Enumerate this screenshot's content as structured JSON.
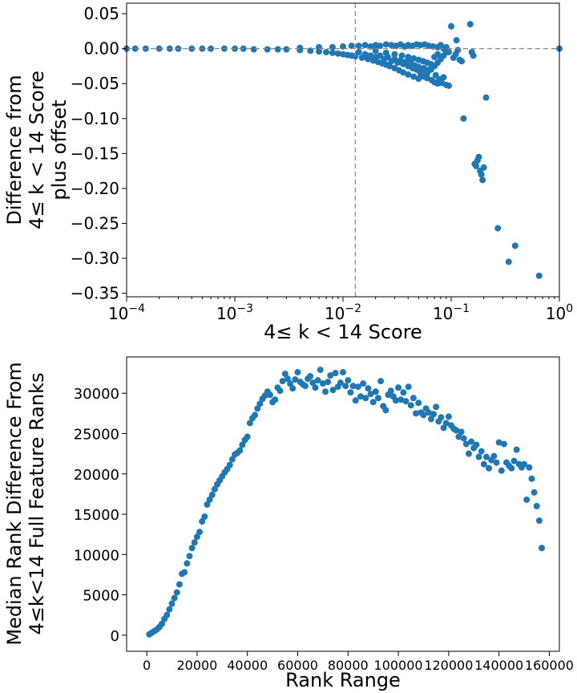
{
  "chart_data": [
    {
      "type": "scatter",
      "xscale": "log",
      "title": "",
      "xlabel": "4≤  k < 14 Score",
      "ylabel_lines": [
        "Difference from",
        "4≤  k < 14 Score",
        "plus offset"
      ],
      "xlim": [
        0.0001,
        1
      ],
      "ylim": [
        -0.355,
        0.065
      ],
      "x_ticks": [
        {
          "value": 0.0001,
          "base": "10",
          "exp": "−4"
        },
        {
          "value": 0.001,
          "base": "10",
          "exp": "−3"
        },
        {
          "value": 0.01,
          "base": "10",
          "exp": "−2"
        },
        {
          "value": 0.1,
          "base": "10",
          "exp": "−1"
        },
        {
          "value": 1,
          "base": "10",
          "exp": "0"
        }
      ],
      "y_ticks": [
        {
          "value": 0.05,
          "label": "0.05"
        },
        {
          "value": 0.0,
          "label": "0.00"
        },
        {
          "value": -0.05,
          "label": "−0.05"
        },
        {
          "value": -0.1,
          "label": "−0.10"
        },
        {
          "value": -0.15,
          "label": "−0.15"
        },
        {
          "value": -0.2,
          "label": "−0.20"
        },
        {
          "value": -0.25,
          "label": "−0.25"
        },
        {
          "value": -0.3,
          "label": "−0.30"
        },
        {
          "value": -0.35,
          "label": "−0.35"
        }
      ],
      "reference_lines": {
        "vertical_x": 0.013,
        "horizontal_y": 0.0
      },
      "marker_color": "#1f77b4",
      "points": [
        [
          0.0001,
          0.0
        ],
        [
          0.00012,
          0.0
        ],
        [
          0.00015,
          0.0
        ],
        [
          0.0002,
          0.0
        ],
        [
          0.00025,
          0.0
        ],
        [
          0.0003,
          0.0
        ],
        [
          0.0004,
          0.0
        ],
        [
          0.0005,
          0.0
        ],
        [
          0.0006,
          0.0
        ],
        [
          0.0008,
          0.0
        ],
        [
          0.001,
          0.0
        ],
        [
          0.0012,
          0.0
        ],
        [
          0.0015,
          -0.001
        ],
        [
          0.002,
          -0.001
        ],
        [
          0.0025,
          -0.001
        ],
        [
          0.003,
          -0.001
        ],
        [
          0.004,
          -0.002
        ],
        [
          0.005,
          -0.003
        ],
        [
          0.006,
          -0.004
        ],
        [
          0.007,
          -0.005
        ],
        [
          0.008,
          -0.006
        ],
        [
          0.009,
          -0.007
        ],
        [
          0.01,
          -0.008
        ],
        [
          0.011,
          -0.009
        ],
        [
          0.012,
          -0.01
        ],
        [
          0.013,
          -0.011
        ],
        [
          0.015,
          -0.013
        ],
        [
          0.017,
          -0.015
        ],
        [
          0.019,
          -0.017
        ],
        [
          0.021,
          -0.019
        ],
        [
          0.023,
          -0.021
        ],
        [
          0.025,
          -0.023
        ],
        [
          0.027,
          -0.025
        ],
        [
          0.03,
          -0.028
        ],
        [
          0.033,
          -0.031
        ],
        [
          0.036,
          -0.034
        ],
        [
          0.04,
          -0.037
        ],
        [
          0.045,
          -0.04
        ],
        [
          0.05,
          -0.043
        ],
        [
          0.004,
          0.001
        ],
        [
          0.006,
          0.002
        ],
        [
          0.008,
          0.002
        ],
        [
          0.01,
          0.003
        ],
        [
          0.012,
          0.004
        ],
        [
          0.014,
          0.004
        ],
        [
          0.016,
          0.005
        ],
        [
          0.018,
          0.003
        ],
        [
          0.02,
          0.005
        ],
        [
          0.022,
          0.004
        ],
        [
          0.025,
          0.006
        ],
        [
          0.028,
          0.005
        ],
        [
          0.031,
          0.004
        ],
        [
          0.034,
          0.006
        ],
        [
          0.037,
          0.003
        ],
        [
          0.04,
          0.005
        ],
        [
          0.044,
          0.004
        ],
        [
          0.048,
          0.006
        ],
        [
          0.052,
          0.005
        ],
        [
          0.057,
          0.006
        ],
        [
          0.062,
          0.004
        ],
        [
          0.068,
          0.003
        ],
        [
          0.075,
          0.002
        ],
        [
          0.014,
          -0.005
        ],
        [
          0.016,
          -0.008
        ],
        [
          0.018,
          -0.01
        ],
        [
          0.02,
          -0.012
        ],
        [
          0.022,
          -0.01
        ],
        [
          0.024,
          -0.015
        ],
        [
          0.026,
          -0.012
        ],
        [
          0.028,
          -0.018
        ],
        [
          0.03,
          -0.015
        ],
        [
          0.032,
          -0.02
        ],
        [
          0.034,
          -0.017
        ],
        [
          0.036,
          -0.022
        ],
        [
          0.038,
          -0.019
        ],
        [
          0.04,
          -0.025
        ],
        [
          0.042,
          -0.02
        ],
        [
          0.044,
          -0.028
        ],
        [
          0.046,
          -0.024
        ],
        [
          0.048,
          -0.03
        ],
        [
          0.05,
          -0.026
        ],
        [
          0.053,
          -0.032
        ],
        [
          0.056,
          -0.028
        ],
        [
          0.06,
          -0.035
        ],
        [
          0.065,
          -0.03
        ],
        [
          0.07,
          -0.025
        ],
        [
          0.075,
          -0.02
        ],
        [
          0.08,
          -0.015
        ],
        [
          0.085,
          -0.01
        ],
        [
          0.09,
          -0.005
        ],
        [
          0.02,
          -0.003
        ],
        [
          0.025,
          -0.006
        ],
        [
          0.03,
          -0.008
        ],
        [
          0.035,
          -0.01
        ],
        [
          0.04,
          -0.012
        ],
        [
          0.045,
          -0.014
        ],
        [
          0.05,
          -0.016
        ],
        [
          0.055,
          -0.018
        ],
        [
          0.06,
          -0.02
        ],
        [
          0.065,
          -0.022
        ],
        [
          0.07,
          -0.012
        ],
        [
          0.075,
          -0.008
        ],
        [
          0.052,
          -0.035
        ],
        [
          0.056,
          -0.04
        ],
        [
          0.06,
          -0.042
        ],
        [
          0.063,
          -0.03
        ],
        [
          0.066,
          -0.045
        ],
        [
          0.07,
          -0.048
        ],
        [
          0.072,
          -0.038
        ],
        [
          0.075,
          -0.05
        ],
        [
          0.078,
          -0.044
        ],
        [
          0.082,
          -0.049
        ],
        [
          0.085,
          -0.041
        ],
        [
          0.09,
          -0.052
        ],
        [
          0.095,
          -0.053
        ],
        [
          0.08,
          0.005
        ],
        [
          0.085,
          0.0
        ],
        [
          0.09,
          0.002
        ],
        [
          0.095,
          -0.005
        ],
        [
          0.1,
          0.032
        ],
        [
          0.105,
          -0.013
        ],
        [
          0.11,
          -0.008
        ],
        [
          0.112,
          0.012
        ],
        [
          0.115,
          -0.002
        ],
        [
          0.12,
          -0.016
        ],
        [
          0.125,
          -0.018
        ],
        [
          0.13,
          -0.1
        ],
        [
          0.15,
          0.035
        ],
        [
          0.155,
          -0.005
        ],
        [
          0.16,
          -0.01
        ],
        [
          0.165,
          -0.165
        ],
        [
          0.17,
          -0.168
        ],
        [
          0.175,
          -0.16
        ],
        [
          0.18,
          -0.155
        ],
        [
          0.185,
          -0.175
        ],
        [
          0.19,
          -0.18
        ],
        [
          0.195,
          -0.188
        ],
        [
          0.2,
          -0.17
        ],
        [
          0.21,
          -0.07
        ],
        [
          0.27,
          -0.257
        ],
        [
          0.34,
          -0.305
        ],
        [
          0.39,
          -0.282
        ],
        [
          0.65,
          -0.325
        ],
        [
          1.0,
          0.0
        ]
      ]
    },
    {
      "type": "scatter",
      "title": "",
      "xlabel": "Rank Range",
      "ylabel_lines": [
        "Median Rank Difference From",
        "4≤k<14 Full Feature Ranks"
      ],
      "xlim": [
        -8000,
        164000
      ],
      "ylim": [
        -2000,
        34500
      ],
      "x_ticks": [
        {
          "value": 0,
          "label": "0"
        },
        {
          "value": 20000,
          "label": "20000"
        },
        {
          "value": 40000,
          "label": "40000"
        },
        {
          "value": 60000,
          "label": "60000"
        },
        {
          "value": 80000,
          "label": "80000"
        },
        {
          "value": 100000,
          "label": "100000"
        },
        {
          "value": 120000,
          "label": "120000"
        },
        {
          "value": 140000,
          "label": "140000"
        },
        {
          "value": 160000,
          "label": "160000"
        }
      ],
      "y_ticks": [
        {
          "value": 0,
          "label": "0"
        },
        {
          "value": 5000,
          "label": "5000"
        },
        {
          "value": 10000,
          "label": "10000"
        },
        {
          "value": 15000,
          "label": "15000"
        },
        {
          "value": 20000,
          "label": "20000"
        },
        {
          "value": 25000,
          "label": "25000"
        },
        {
          "value": 30000,
          "label": "30000"
        }
      ],
      "marker_color": "#1f77b4",
      "points": [
        [
          1000,
          100
        ],
        [
          2000,
          300
        ],
        [
          3000,
          500
        ],
        [
          4000,
          700
        ],
        [
          5000,
          1000
        ],
        [
          6000,
          1400
        ],
        [
          7000,
          2000
        ],
        [
          8000,
          2500
        ],
        [
          9000,
          3200
        ],
        [
          10000,
          3900
        ],
        [
          11000,
          4600
        ],
        [
          12000,
          5300
        ],
        [
          13000,
          6300
        ],
        [
          14000,
          7600
        ],
        [
          15000,
          7800
        ],
        [
          16000,
          8900
        ],
        [
          17000,
          9800
        ],
        [
          18000,
          10800
        ],
        [
          19000,
          11500
        ],
        [
          20000,
          12200
        ],
        [
          21000,
          12800
        ],
        [
          22000,
          14100
        ],
        [
          23000,
          14700
        ],
        [
          24000,
          16200
        ],
        [
          25000,
          16800
        ],
        [
          26000,
          17400
        ],
        [
          27000,
          18100
        ],
        [
          28000,
          18700
        ],
        [
          29000,
          19200
        ],
        [
          30000,
          19700
        ],
        [
          31000,
          20200
        ],
        [
          32000,
          20600
        ],
        [
          33000,
          21100
        ],
        [
          34000,
          21800
        ],
        [
          35000,
          22400
        ],
        [
          36000,
          22600
        ],
        [
          37000,
          22900
        ],
        [
          38000,
          23600
        ],
        [
          39000,
          24200
        ],
        [
          40000,
          24600
        ],
        [
          41000,
          26300
        ],
        [
          42000,
          26900
        ],
        [
          43000,
          27300
        ],
        [
          44000,
          28100
        ],
        [
          45000,
          28700
        ],
        [
          46000,
          29300
        ],
        [
          47000,
          29700
        ],
        [
          48000,
          30200
        ],
        [
          49000,
          29800
        ],
        [
          50000,
          28900
        ],
        [
          51000,
          29200
        ],
        [
          52000,
          30700
        ],
        [
          53000,
          30300
        ],
        [
          54000,
          31500
        ],
        [
          55000,
          32400
        ],
        [
          56000,
          31800
        ],
        [
          57000,
          31200
        ],
        [
          58000,
          30600
        ],
        [
          59000,
          31700
        ],
        [
          60000,
          32600
        ],
        [
          61000,
          31400
        ],
        [
          62000,
          31100
        ],
        [
          63000,
          30900
        ],
        [
          64000,
          31800
        ],
        [
          65000,
          32100
        ],
        [
          66000,
          31300
        ],
        [
          67000,
          30700
        ],
        [
          68000,
          31600
        ],
        [
          69000,
          32900
        ],
        [
          70000,
          31200
        ],
        [
          71000,
          30200
        ],
        [
          72000,
          31400
        ],
        [
          73000,
          32200
        ],
        [
          74000,
          30400
        ],
        [
          75000,
          32500
        ],
        [
          76000,
          30800
        ],
        [
          77000,
          31300
        ],
        [
          78000,
          32600
        ],
        [
          79000,
          30900
        ],
        [
          80000,
          31600
        ],
        [
          81000,
          30100
        ],
        [
          82000,
          30900
        ],
        [
          83000,
          29100
        ],
        [
          84000,
          30800
        ],
        [
          85000,
          29600
        ],
        [
          86000,
          31200
        ],
        [
          87000,
          29400
        ],
        [
          88000,
          30600
        ],
        [
          89000,
          29900
        ],
        [
          90000,
          28900
        ],
        [
          91000,
          30200
        ],
        [
          92000,
          29400
        ],
        [
          93000,
          31500
        ],
        [
          94000,
          28400
        ],
        [
          95000,
          27900
        ],
        [
          96000,
          29800
        ],
        [
          97000,
          30300
        ],
        [
          98000,
          29600
        ],
        [
          99000,
          29100
        ],
        [
          100000,
          30700
        ],
        [
          101000,
          29200
        ],
        [
          102000,
          30100
        ],
        [
          103000,
          29000
        ],
        [
          104000,
          30800
        ],
        [
          105000,
          28500
        ],
        [
          106000,
          29400
        ],
        [
          107000,
          27500
        ],
        [
          108000,
          28800
        ],
        [
          109000,
          27600
        ],
        [
          110000,
          27300
        ],
        [
          111000,
          28100
        ],
        [
          112000,
          27600
        ],
        [
          113000,
          26800
        ],
        [
          114000,
          27400
        ],
        [
          115000,
          28300
        ],
        [
          116000,
          26500
        ],
        [
          117000,
          27000
        ],
        [
          118000,
          25700
        ],
        [
          119000,
          26300
        ],
        [
          120000,
          27100
        ],
        [
          121000,
          26000
        ],
        [
          122000,
          25600
        ],
        [
          123000,
          25400
        ],
        [
          124000,
          24600
        ],
        [
          125000,
          25200
        ],
        [
          126000,
          24400
        ],
        [
          127000,
          23700
        ],
        [
          128000,
          22500
        ],
        [
          129000,
          24000
        ],
        [
          130000,
          23200
        ],
        [
          131000,
          23600
        ],
        [
          132000,
          22100
        ],
        [
          133000,
          22800
        ],
        [
          134000,
          21200
        ],
        [
          135000,
          22100
        ],
        [
          136000,
          20700
        ],
        [
          137000,
          21700
        ],
        [
          138000,
          22200
        ],
        [
          139000,
          21400
        ],
        [
          140000,
          23900
        ],
        [
          141000,
          20400
        ],
        [
          142000,
          23700
        ],
        [
          143000,
          21400
        ],
        [
          144000,
          21000
        ],
        [
          145000,
          20700
        ],
        [
          146000,
          21600
        ],
        [
          147000,
          23000
        ],
        [
          148000,
          21200
        ],
        [
          149000,
          20800
        ],
        [
          150000,
          21200
        ],
        [
          151000,
          16800
        ],
        [
          152000,
          20800
        ],
        [
          153000,
          19400
        ],
        [
          154000,
          17700
        ],
        [
          155000,
          16000
        ],
        [
          156000,
          14200
        ],
        [
          157000,
          10800
        ]
      ]
    }
  ]
}
